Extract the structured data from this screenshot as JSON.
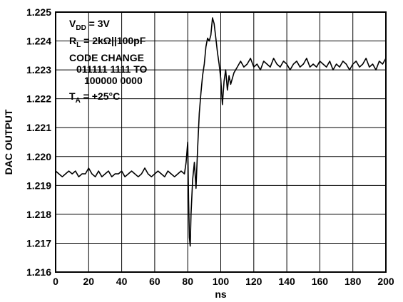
{
  "chart_data": {
    "type": "line",
    "title": "",
    "xlabel": "ns",
    "ylabel": "DAC OUTPUT",
    "xlim": [
      0,
      200
    ],
    "ylim": [
      1.216,
      1.225
    ],
    "x_ticks": [
      "0",
      "20",
      "40",
      "60",
      "80",
      "100",
      "120",
      "140",
      "160",
      "180",
      "200"
    ],
    "y_ticks": [
      "1.216",
      "1.217",
      "1.218",
      "1.219",
      "1.220",
      "1.221",
      "1.222",
      "1.223",
      "1.224",
      "1.225"
    ],
    "grid": true,
    "legend": "none",
    "annotations": {
      "vdd": {
        "main": "V",
        "sub": "DD",
        "rest": " = 3V"
      },
      "rl": {
        "main": "R",
        "sub": "L",
        "rest": " = 2kΩ||100pF"
      },
      "code_change": "CODE CHANGE",
      "code_from": "011111 1111 TO",
      "code_to": "100000 0000",
      "ta": {
        "main": "T",
        "sub": "A",
        "rest": " = +25°C"
      }
    },
    "series": [
      {
        "color": "#000000",
        "x": [
          0,
          2,
          4,
          6,
          8,
          10,
          12,
          14,
          16,
          18,
          20,
          22,
          24,
          26,
          28,
          30,
          32,
          34,
          36,
          38,
          40,
          42,
          44,
          46,
          48,
          50,
          52,
          54,
          56,
          58,
          60,
          62,
          64,
          66,
          68,
          70,
          72,
          74,
          76,
          78,
          79,
          80,
          80.5,
          81,
          81.5,
          82,
          83,
          84,
          85,
          86,
          87,
          88,
          89,
          90,
          91,
          92,
          93,
          94,
          95,
          96,
          97,
          98,
          99,
          100,
          101,
          102,
          103,
          104,
          105,
          106,
          108,
          110,
          112,
          114,
          116,
          118,
          120,
          122,
          124,
          126,
          128,
          130,
          132,
          134,
          136,
          138,
          140,
          142,
          144,
          146,
          148,
          150,
          152,
          154,
          156,
          158,
          160,
          162,
          164,
          166,
          168,
          170,
          172,
          174,
          176,
          178,
          180,
          182,
          184,
          186,
          188,
          190,
          192,
          194,
          196,
          198,
          200
        ],
        "y": [
          1.2195,
          1.2194,
          1.2193,
          1.2194,
          1.2195,
          1.2194,
          1.2195,
          1.2193,
          1.2194,
          1.2194,
          1.2196,
          1.2194,
          1.2193,
          1.2195,
          1.2193,
          1.2194,
          1.2195,
          1.2193,
          1.2194,
          1.2194,
          1.2195,
          1.2193,
          1.2194,
          1.2195,
          1.2194,
          1.2193,
          1.2194,
          1.2196,
          1.2194,
          1.2193,
          1.2194,
          1.2195,
          1.2194,
          1.2193,
          1.2195,
          1.2194,
          1.2193,
          1.2194,
          1.2195,
          1.2194,
          1.2198,
          1.2205,
          1.2185,
          1.2172,
          1.2169,
          1.218,
          1.2192,
          1.2198,
          1.2189,
          1.2203,
          1.2215,
          1.2222,
          1.2228,
          1.2232,
          1.2238,
          1.2241,
          1.224,
          1.2242,
          1.2248,
          1.2246,
          1.2241,
          1.2236,
          1.2232,
          1.2227,
          1.2218,
          1.2226,
          1.223,
          1.2223,
          1.2228,
          1.2225,
          1.2229,
          1.2231,
          1.2233,
          1.2231,
          1.2232,
          1.2234,
          1.2231,
          1.2232,
          1.223,
          1.2233,
          1.2232,
          1.2231,
          1.2234,
          1.2232,
          1.2231,
          1.2233,
          1.2232,
          1.223,
          1.2232,
          1.2233,
          1.2231,
          1.2232,
          1.2234,
          1.2231,
          1.2232,
          1.2231,
          1.2233,
          1.2232,
          1.2231,
          1.2233,
          1.223,
          1.2232,
          1.2231,
          1.2233,
          1.2232,
          1.223,
          1.2232,
          1.2233,
          1.2231,
          1.2232,
          1.2234,
          1.2231,
          1.2232,
          1.223,
          1.2233,
          1.2232,
          1.2234
        ]
      }
    ]
  }
}
